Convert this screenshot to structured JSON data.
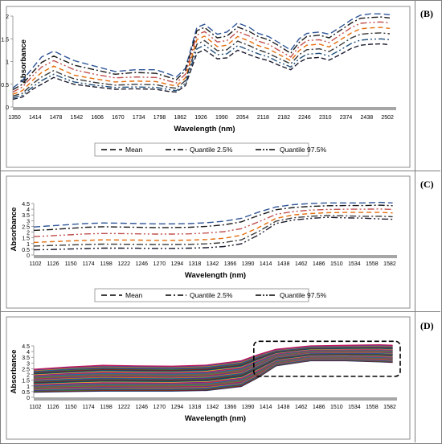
{
  "panels": [
    {
      "label": "(B)",
      "chart_data": {
        "type": "line",
        "xlabel": "Wavelength (nm)",
        "ylabel": "Absorbance",
        "x_ticks": [
          "1350",
          "1414",
          "1478",
          "1542",
          "1606",
          "1670",
          "1734",
          "1798",
          "1862",
          "1926",
          "1990",
          "2054",
          "2118",
          "2182",
          "2246",
          "2310",
          "2374",
          "2438",
          "2502"
        ],
        "xlim": [
          1350,
          2550
        ],
        "ylim": [
          0,
          2
        ],
        "y_ticks": [
          "0",
          "0.5",
          "1",
          "1.5",
          "2"
        ],
        "legend": [
          "Mean",
          "Quantile 2.5%",
          "Quantile 97.5%"
        ],
        "legend_position": "bottom",
        "x": [
          1350,
          1380,
          1414,
          1440,
          1478,
          1510,
          1542,
          1606,
          1670,
          1734,
          1798,
          1840,
          1862,
          1890,
          1926,
          1950,
          1990,
          2020,
          2054,
          2090,
          2118,
          2150,
          2182,
          2220,
          2246,
          2270,
          2310,
          2340,
          2374,
          2410,
          2438,
          2470,
          2502,
          2530
        ],
        "series": [
          {
            "values": [
              0.42,
              0.58,
              0.88,
              1.1,
              1.23,
              1.12,
              1.02,
              0.9,
              0.78,
              0.82,
              0.82,
              0.72,
              0.66,
              0.85,
              1.75,
              1.82,
              1.6,
              1.65,
              1.85,
              1.75,
              1.62,
              1.55,
              1.42,
              1.25,
              1.5,
              1.62,
              1.65,
              1.6,
              1.75,
              1.92,
              2.02,
              2.05,
              2.05,
              2.03
            ]
          },
          {
            "values": [
              0.38,
              0.5,
              0.78,
              0.98,
              1.12,
              1.02,
              0.92,
              0.82,
              0.72,
              0.76,
              0.74,
              0.65,
              0.6,
              0.8,
              1.68,
              1.75,
              1.52,
              1.56,
              1.76,
              1.66,
              1.55,
              1.48,
              1.35,
              1.18,
              1.42,
              1.55,
              1.58,
              1.52,
              1.68,
              1.85,
              1.95,
              1.97,
              1.98,
              1.96
            ]
          },
          {
            "values": [
              0.33,
              0.44,
              0.7,
              0.88,
              1.02,
              0.92,
              0.82,
              0.72,
              0.64,
              0.66,
              0.65,
              0.57,
              0.53,
              0.72,
              1.58,
              1.66,
              1.43,
              1.46,
              1.66,
              1.56,
              1.45,
              1.38,
              1.25,
              1.1,
              1.33,
              1.46,
              1.48,
              1.42,
              1.58,
              1.75,
              1.84,
              1.86,
              1.87,
              1.85
            ]
          },
          {
            "values": [
              0.28,
              0.36,
              0.6,
              0.76,
              0.9,
              0.8,
              0.7,
              0.62,
              0.55,
              0.57,
              0.56,
              0.49,
              0.46,
              0.64,
              1.48,
              1.56,
              1.33,
              1.36,
              1.55,
              1.45,
              1.35,
              1.28,
              1.16,
              1.02,
              1.24,
              1.36,
              1.38,
              1.32,
              1.47,
              1.63,
              1.72,
              1.74,
              1.75,
              1.73
            ]
          },
          {
            "values": [
              0.24,
              0.3,
              0.52,
              0.66,
              0.8,
              0.7,
              0.62,
              0.54,
              0.48,
              0.5,
              0.49,
              0.43,
              0.41,
              0.58,
              1.38,
              1.46,
              1.24,
              1.26,
              1.45,
              1.35,
              1.26,
              1.18,
              1.07,
              0.95,
              1.15,
              1.26,
              1.28,
              1.22,
              1.36,
              1.52,
              1.6,
              1.62,
              1.63,
              1.61
            ]
          },
          {
            "values": [
              0.2,
              0.26,
              0.45,
              0.58,
              0.72,
              0.63,
              0.55,
              0.48,
              0.43,
              0.44,
              0.43,
              0.38,
              0.36,
              0.52,
              1.28,
              1.36,
              1.15,
              1.17,
              1.35,
              1.25,
              1.17,
              1.1,
              0.99,
              0.88,
              1.06,
              1.16,
              1.18,
              1.12,
              1.25,
              1.4,
              1.47,
              1.49,
              1.5,
              1.48
            ]
          },
          {
            "values": [
              0.17,
              0.22,
              0.4,
              0.5,
              0.65,
              0.57,
              0.5,
              0.44,
              0.39,
              0.4,
              0.39,
              0.34,
              0.33,
              0.47,
              1.18,
              1.26,
              1.06,
              1.08,
              1.25,
              1.15,
              1.08,
              1.02,
              0.92,
              0.82,
              0.98,
              1.07,
              1.09,
              1.03,
              1.15,
              1.29,
              1.36,
              1.38,
              1.39,
              1.37
            ]
          }
        ]
      }
    },
    {
      "label": "(C)",
      "chart_data": {
        "type": "line",
        "xlabel": "Wavelength (nm)",
        "ylabel": "Absorbance",
        "x_ticks": [
          "1102",
          "1126",
          "1150",
          "1174",
          "1198",
          "1222",
          "1246",
          "1270",
          "1294",
          "1318",
          "1342",
          "1366",
          "1390",
          "1414",
          "1438",
          "1462",
          "1486",
          "1510",
          "1534",
          "1558",
          "1582"
        ],
        "xlim": [
          1102,
          1606
        ],
        "ylim": [
          0,
          4.5
        ],
        "y_ticks": [
          "0",
          "0.5",
          "1",
          "1.5",
          "2",
          "2.5",
          "3",
          "3.5",
          "4",
          "4.5"
        ],
        "legend": [
          "Mean",
          "Quantile 2.5%",
          "Quantile 97.5%"
        ],
        "legend_position": "bottom",
        "x": [
          1102,
          1126,
          1150,
          1174,
          1198,
          1222,
          1246,
          1270,
          1294,
          1318,
          1342,
          1366,
          1390,
          1414,
          1438,
          1462,
          1486,
          1510,
          1534,
          1558,
          1582,
          1600
        ],
        "series": [
          {
            "values": [
              2.45,
              2.55,
              2.65,
              2.75,
              2.8,
              2.78,
              2.75,
              2.72,
              2.72,
              2.74,
              2.82,
              2.95,
              3.2,
              3.75,
              4.2,
              4.4,
              4.5,
              4.55,
              4.55,
              4.55,
              4.6,
              4.55
            ]
          },
          {
            "values": [
              2.15,
              2.22,
              2.32,
              2.42,
              2.47,
              2.45,
              2.42,
              2.4,
              2.4,
              2.42,
              2.5,
              2.64,
              2.9,
              3.45,
              3.95,
              4.15,
              4.25,
              4.3,
              4.32,
              4.32,
              4.35,
              4.3
            ]
          },
          {
            "values": [
              1.6,
              1.68,
              1.76,
              1.84,
              1.88,
              1.87,
              1.85,
              1.83,
              1.83,
              1.85,
              1.92,
              2.04,
              2.3,
              2.9,
              3.55,
              3.8,
              3.92,
              3.98,
              4.0,
              4.0,
              4.02,
              3.98
            ]
          },
          {
            "values": [
              1.1,
              1.16,
              1.22,
              1.28,
              1.32,
              1.31,
              1.3,
              1.28,
              1.28,
              1.3,
              1.35,
              1.46,
              1.72,
              2.4,
              3.2,
              3.5,
              3.62,
              3.7,
              3.72,
              3.72,
              3.72,
              3.68
            ]
          },
          {
            "values": [
              0.78,
              0.83,
              0.87,
              0.92,
              0.95,
              0.94,
              0.93,
              0.92,
              0.92,
              0.93,
              0.98,
              1.08,
              1.32,
              2.05,
              2.95,
              3.25,
              3.38,
              3.45,
              3.42,
              3.38,
              3.38,
              3.35
            ]
          },
          {
            "values": [
              0.45,
              0.48,
              0.52,
              0.56,
              0.6,
              0.6,
              0.59,
              0.58,
              0.58,
              0.6,
              0.64,
              0.74,
              0.98,
              1.75,
              2.75,
              3.05,
              3.2,
              3.3,
              3.25,
              3.22,
              3.15,
              3.12
            ]
          }
        ]
      }
    },
    {
      "label": "(D)",
      "chart_data": {
        "type": "line",
        "xlabel": "Wavelength (nm)",
        "ylabel": "Absorbance",
        "x_ticks": [
          "1102",
          "1126",
          "1150",
          "1174",
          "1198",
          "1222",
          "1246",
          "1270",
          "1294",
          "1318",
          "1342",
          "1366",
          "1390",
          "1414",
          "1438",
          "1462",
          "1486",
          "1510",
          "1534",
          "1558",
          "1582"
        ],
        "xlim": [
          1102,
          1606
        ],
        "ylim": [
          0,
          4.5
        ],
        "y_ticks": [
          "0",
          "0.5",
          "1",
          "1.5",
          "2",
          "2.5",
          "3",
          "3.5",
          "4",
          "4.5"
        ],
        "x": [
          1102,
          1150,
          1198,
          1246,
          1294,
          1342,
          1390,
          1414,
          1438,
          1486,
          1534,
          1582,
          1600
        ],
        "series_low": [
          0.45,
          0.5,
          0.55,
          0.55,
          0.55,
          0.6,
          0.95,
          1.75,
          2.75,
          3.2,
          3.2,
          3.1,
          3.05
        ],
        "series_high": [
          2.45,
          2.65,
          2.8,
          2.75,
          2.72,
          2.82,
          3.2,
          3.75,
          4.2,
          4.5,
          4.55,
          4.6,
          4.55
        ],
        "series_count": 40,
        "colors": [
          "#1f3b73",
          "#8b1a1a",
          "#2e7d32",
          "#6a1b9a",
          "#00838f",
          "#ef6c00",
          "#3949ab",
          "#c2185b",
          "#558b2f",
          "#795548",
          "#616161",
          "#0277bd",
          "#d32f2f",
          "#7b1fa2",
          "#f9a825",
          "#00695c"
        ]
      }
    }
  ]
}
